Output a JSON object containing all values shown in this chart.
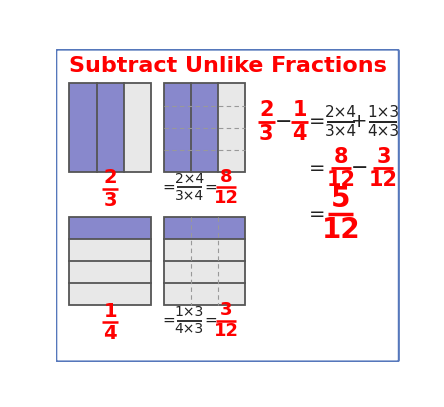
{
  "title": "Subtract Unlike Fractions",
  "title_color": "#ff0000",
  "title_fontsize": 16,
  "bg_color": "#ffffff",
  "border_color": "#5577bb",
  "purple_fill": "#8888cc",
  "gray_fill": "#e8e8e8",
  "red_color": "#ff0000",
  "black_color": "#222222",
  "dark_gray": "#555555",
  "dashed_color": "#999999"
}
